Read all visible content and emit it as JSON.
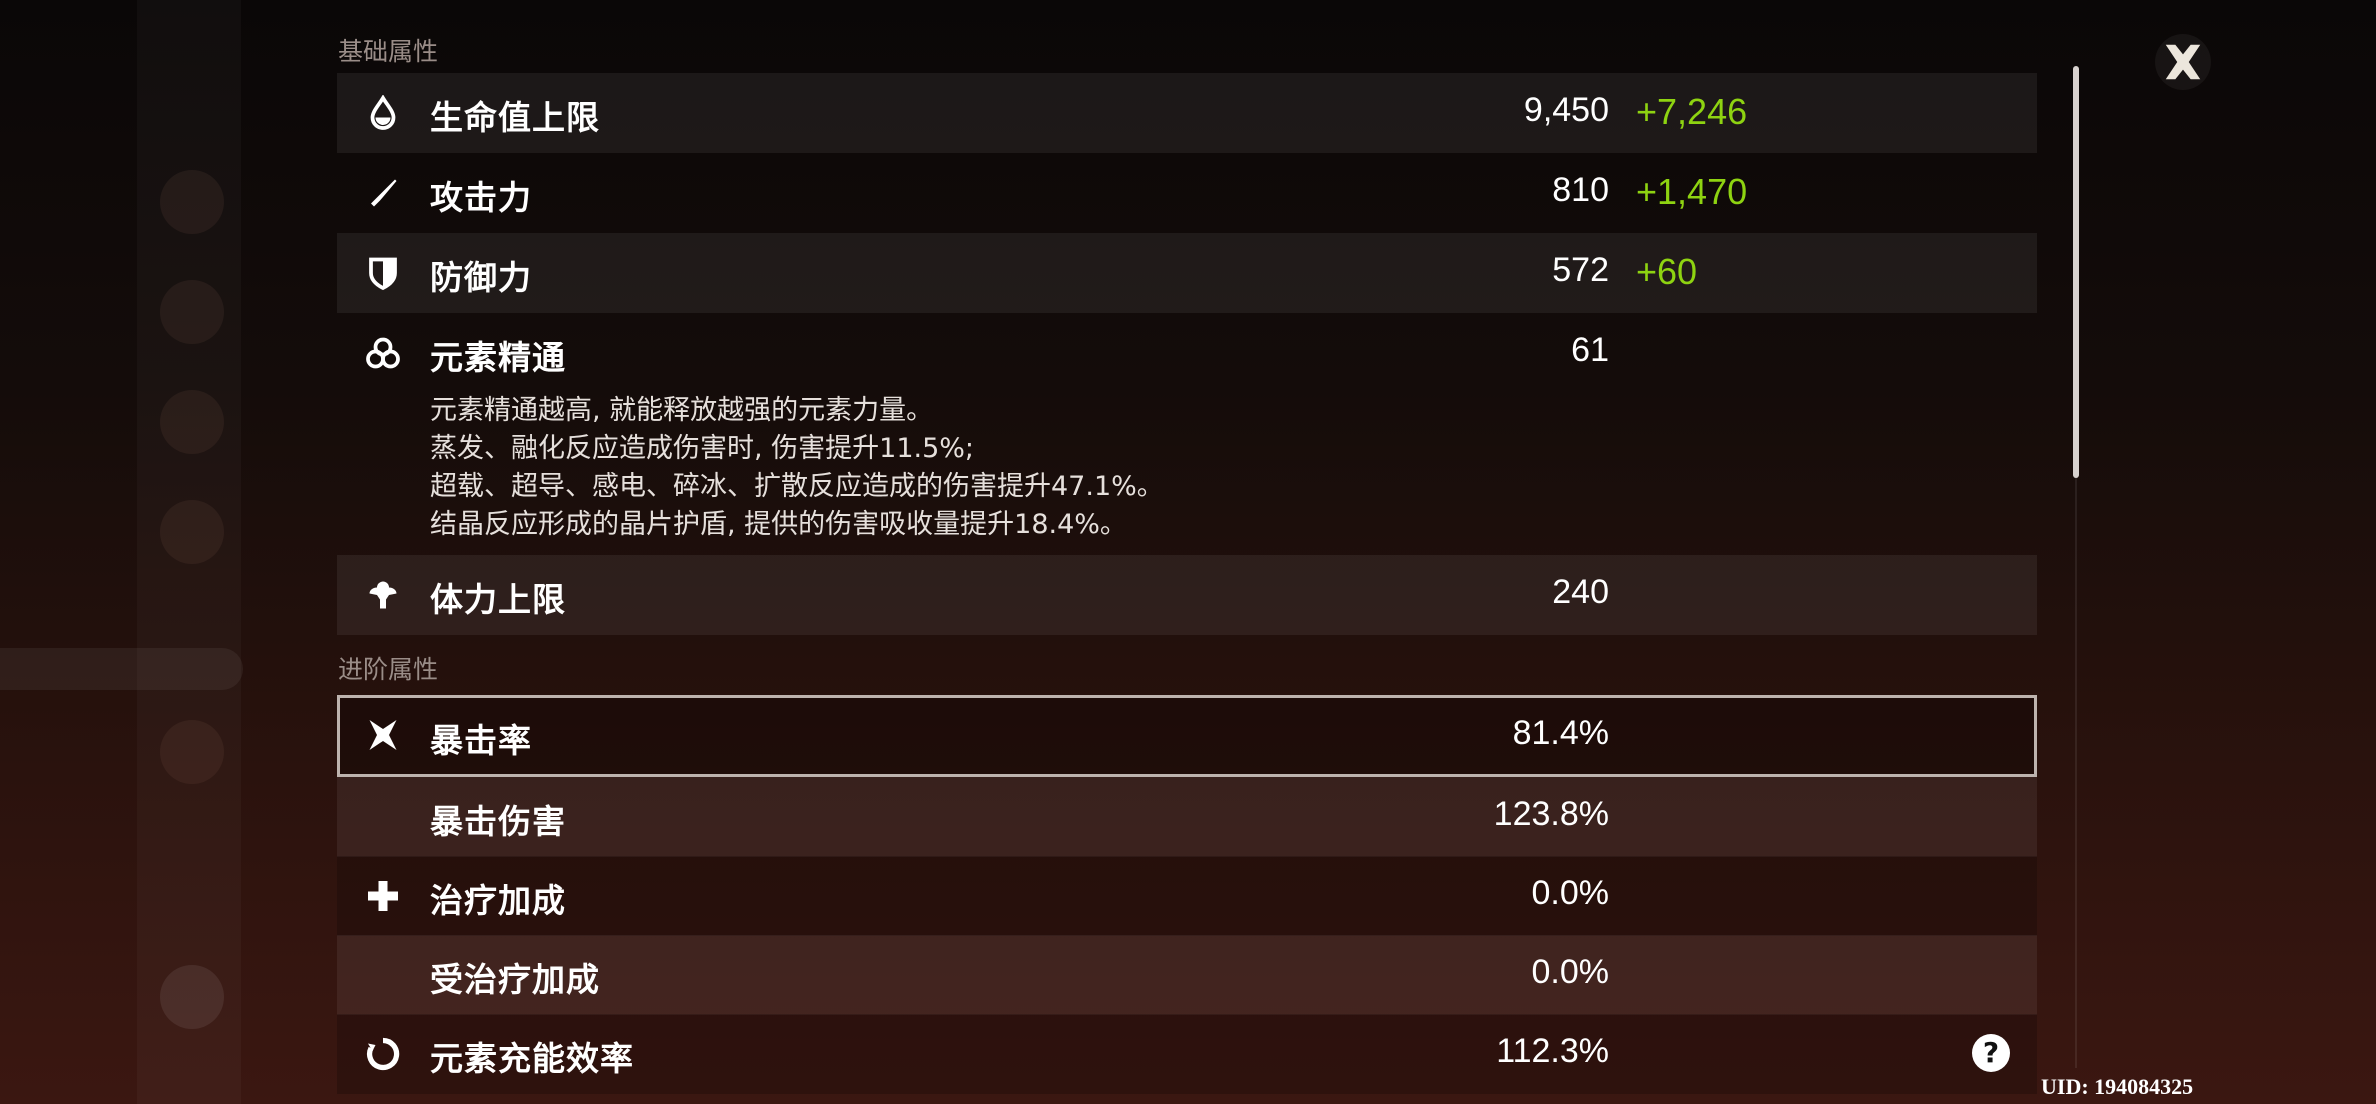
{
  "sections": {
    "basic": "基础属性",
    "advanced": "进阶属性"
  },
  "basic_stats": [
    {
      "icon": "hp-drop-icon",
      "label": "生命值上限",
      "value": "9,450",
      "bonus": "+7,246"
    },
    {
      "icon": "sword-icon",
      "label": "攻击力",
      "value": "810",
      "bonus": "+1,470"
    },
    {
      "icon": "shield-icon",
      "label": "防御力",
      "value": "572",
      "bonus": "+60"
    },
    {
      "icon": "elemental-mastery-icon",
      "label": "元素精通",
      "value": "61"
    },
    {
      "icon": "stamina-icon",
      "label": "体力上限",
      "value": "240"
    }
  ],
  "em_description": [
    "元素精通越高, 就能释放越强的元素力量。",
    "蒸发、融化反应造成伤害时, 伤害提升11.5%;",
    "超载、超导、感电、碎冰、扩散反应造成的伤害提升47.1%。",
    "结晶反应形成的晶片护盾, 提供的伤害吸收量提升18.4%。"
  ],
  "advanced_stats": [
    {
      "icon": "crit-icon",
      "label": "暴击率",
      "value": "81.4%",
      "selected": true
    },
    {
      "icon": "",
      "label": "暴击伤害",
      "value": "123.8%"
    },
    {
      "icon": "healing-cross-icon",
      "label": "治疗加成",
      "value": "0.0%"
    },
    {
      "icon": "",
      "label": "受治疗加成",
      "value": "0.0%"
    },
    {
      "icon": "energy-recharge-icon",
      "label": "元素充能效率",
      "value": "112.3%"
    }
  ],
  "uid": "UID: 194084325",
  "help": "?",
  "colors": {
    "bonus": "#8ed311",
    "selected_border": "#bdb3ae"
  }
}
